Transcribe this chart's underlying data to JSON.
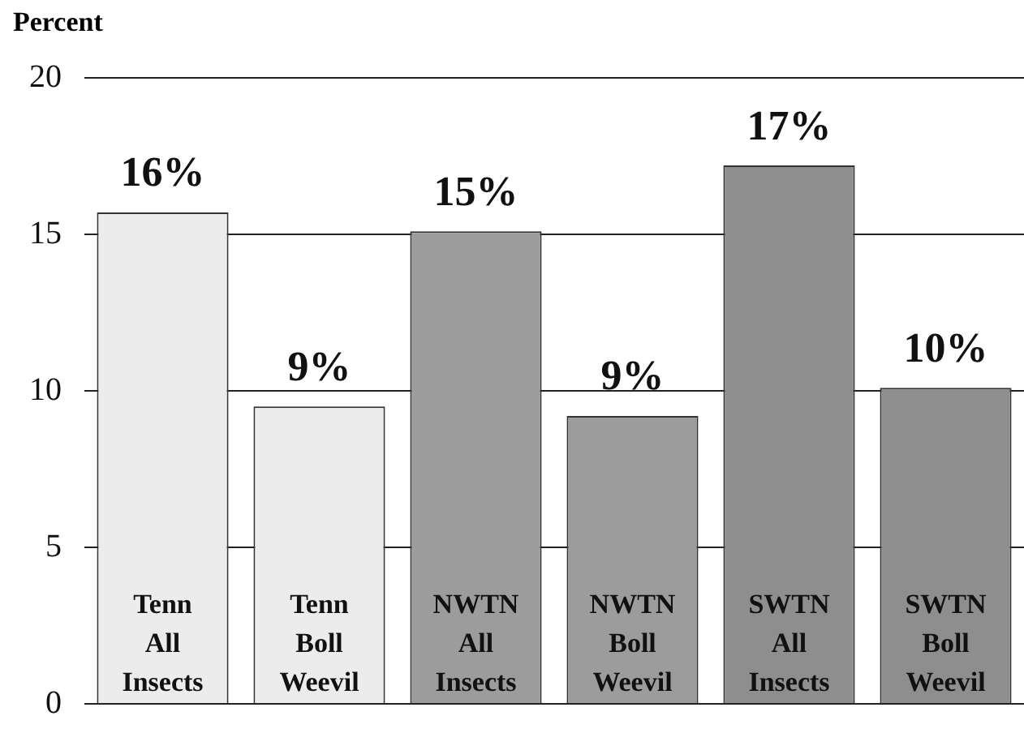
{
  "chart_data": {
    "type": "bar",
    "ylabel": "Percent",
    "categories": [
      "Tenn All Insects",
      "Tenn Boll Weevil",
      "NWTN All Insects",
      "NWTN Boll Weevil",
      "SWTN All Insects",
      "SWTN Boll Weevil"
    ],
    "values": [
      15.7,
      9.5,
      15.1,
      9.2,
      17.2,
      10.1
    ],
    "colors": [
      "#ececec",
      "#ececec",
      "#9c9c9c",
      "#9c9c9c",
      "#8e8e8e",
      "#8e8e8e"
    ],
    "value_labels": [
      "16%",
      "9%",
      "15%",
      "9%",
      "17%",
      "10%"
    ],
    "ylim": [
      0,
      20
    ],
    "yticks": [
      0,
      5,
      10,
      15,
      20
    ],
    "grid": "y",
    "legend": false
  }
}
